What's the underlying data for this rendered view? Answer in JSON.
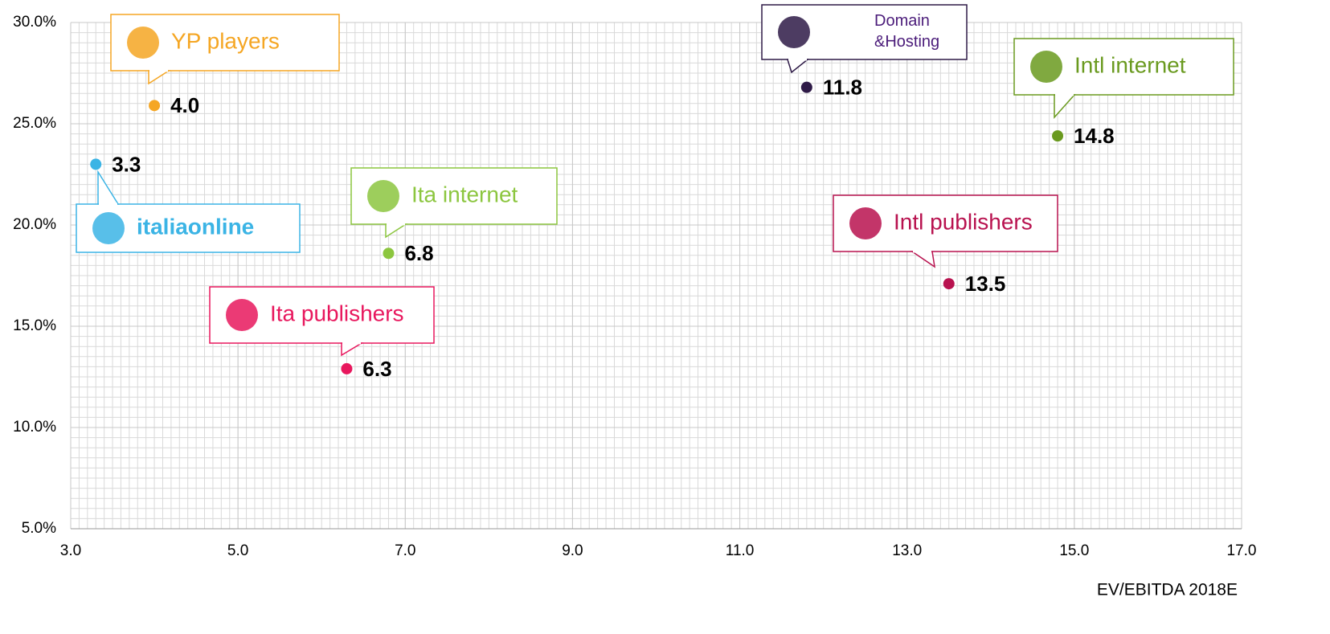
{
  "chart_data": {
    "type": "scatter",
    "x_label": "EV/EBITDA 2018E",
    "xlim": [
      3,
      17
    ],
    "xticks": [
      {
        "value": 3,
        "label": "3.0"
      },
      {
        "value": 5,
        "label": "5.0"
      },
      {
        "value": 7,
        "label": "7.0"
      },
      {
        "value": 9,
        "label": "9.0"
      },
      {
        "value": 11,
        "label": "11.0"
      },
      {
        "value": 13,
        "label": "13.0"
      },
      {
        "value": 15,
        "label": "15.0"
      },
      {
        "value": 17,
        "label": "17.0"
      }
    ],
    "ylim": [
      5,
      30
    ],
    "yticks": [
      {
        "value": 5,
        "label": "5.0%"
      },
      {
        "value": 10,
        "label": "10.0%"
      },
      {
        "value": 15,
        "label": "15.0%"
      },
      {
        "value": 20,
        "label": "20.0%"
      },
      {
        "value": 25,
        "label": "25.0%"
      },
      {
        "value": 30,
        "label": "30.0%"
      }
    ],
    "grid": true,
    "series": [
      {
        "name": "YP players",
        "color": "#f5a623",
        "x": [
          4.0
        ],
        "values": [
          25.9
        ],
        "labels": [
          "4.0"
        ]
      },
      {
        "name": "italiaonline",
        "color": "#3bb4e5",
        "x": [
          3.3
        ],
        "values": [
          23.0
        ],
        "labels": [
          "3.3"
        ]
      },
      {
        "name": "Ita internet",
        "color": "#8cc63f",
        "x": [
          6.8
        ],
        "values": [
          18.6
        ],
        "labels": [
          "6.8"
        ]
      },
      {
        "name": "Ita publishers",
        "color": "#e8175d",
        "x": [
          6.3
        ],
        "values": [
          12.9
        ],
        "labels": [
          "6.3"
        ]
      },
      {
        "name": "Domain\n&Hosting",
        "color": "#2e1a47",
        "x": [
          11.8
        ],
        "values": [
          26.8
        ],
        "labels": [
          "11.8"
        ]
      },
      {
        "name": "Intl publishers",
        "color": "#b8124f",
        "x": [
          13.5
        ],
        "values": [
          17.1
        ],
        "labels": [
          "13.5"
        ]
      },
      {
        "name": "Intl internet",
        "color": "#6a9a1f",
        "x": [
          14.8
        ],
        "values": [
          24.4
        ],
        "labels": [
          "14.8"
        ]
      }
    ]
  }
}
